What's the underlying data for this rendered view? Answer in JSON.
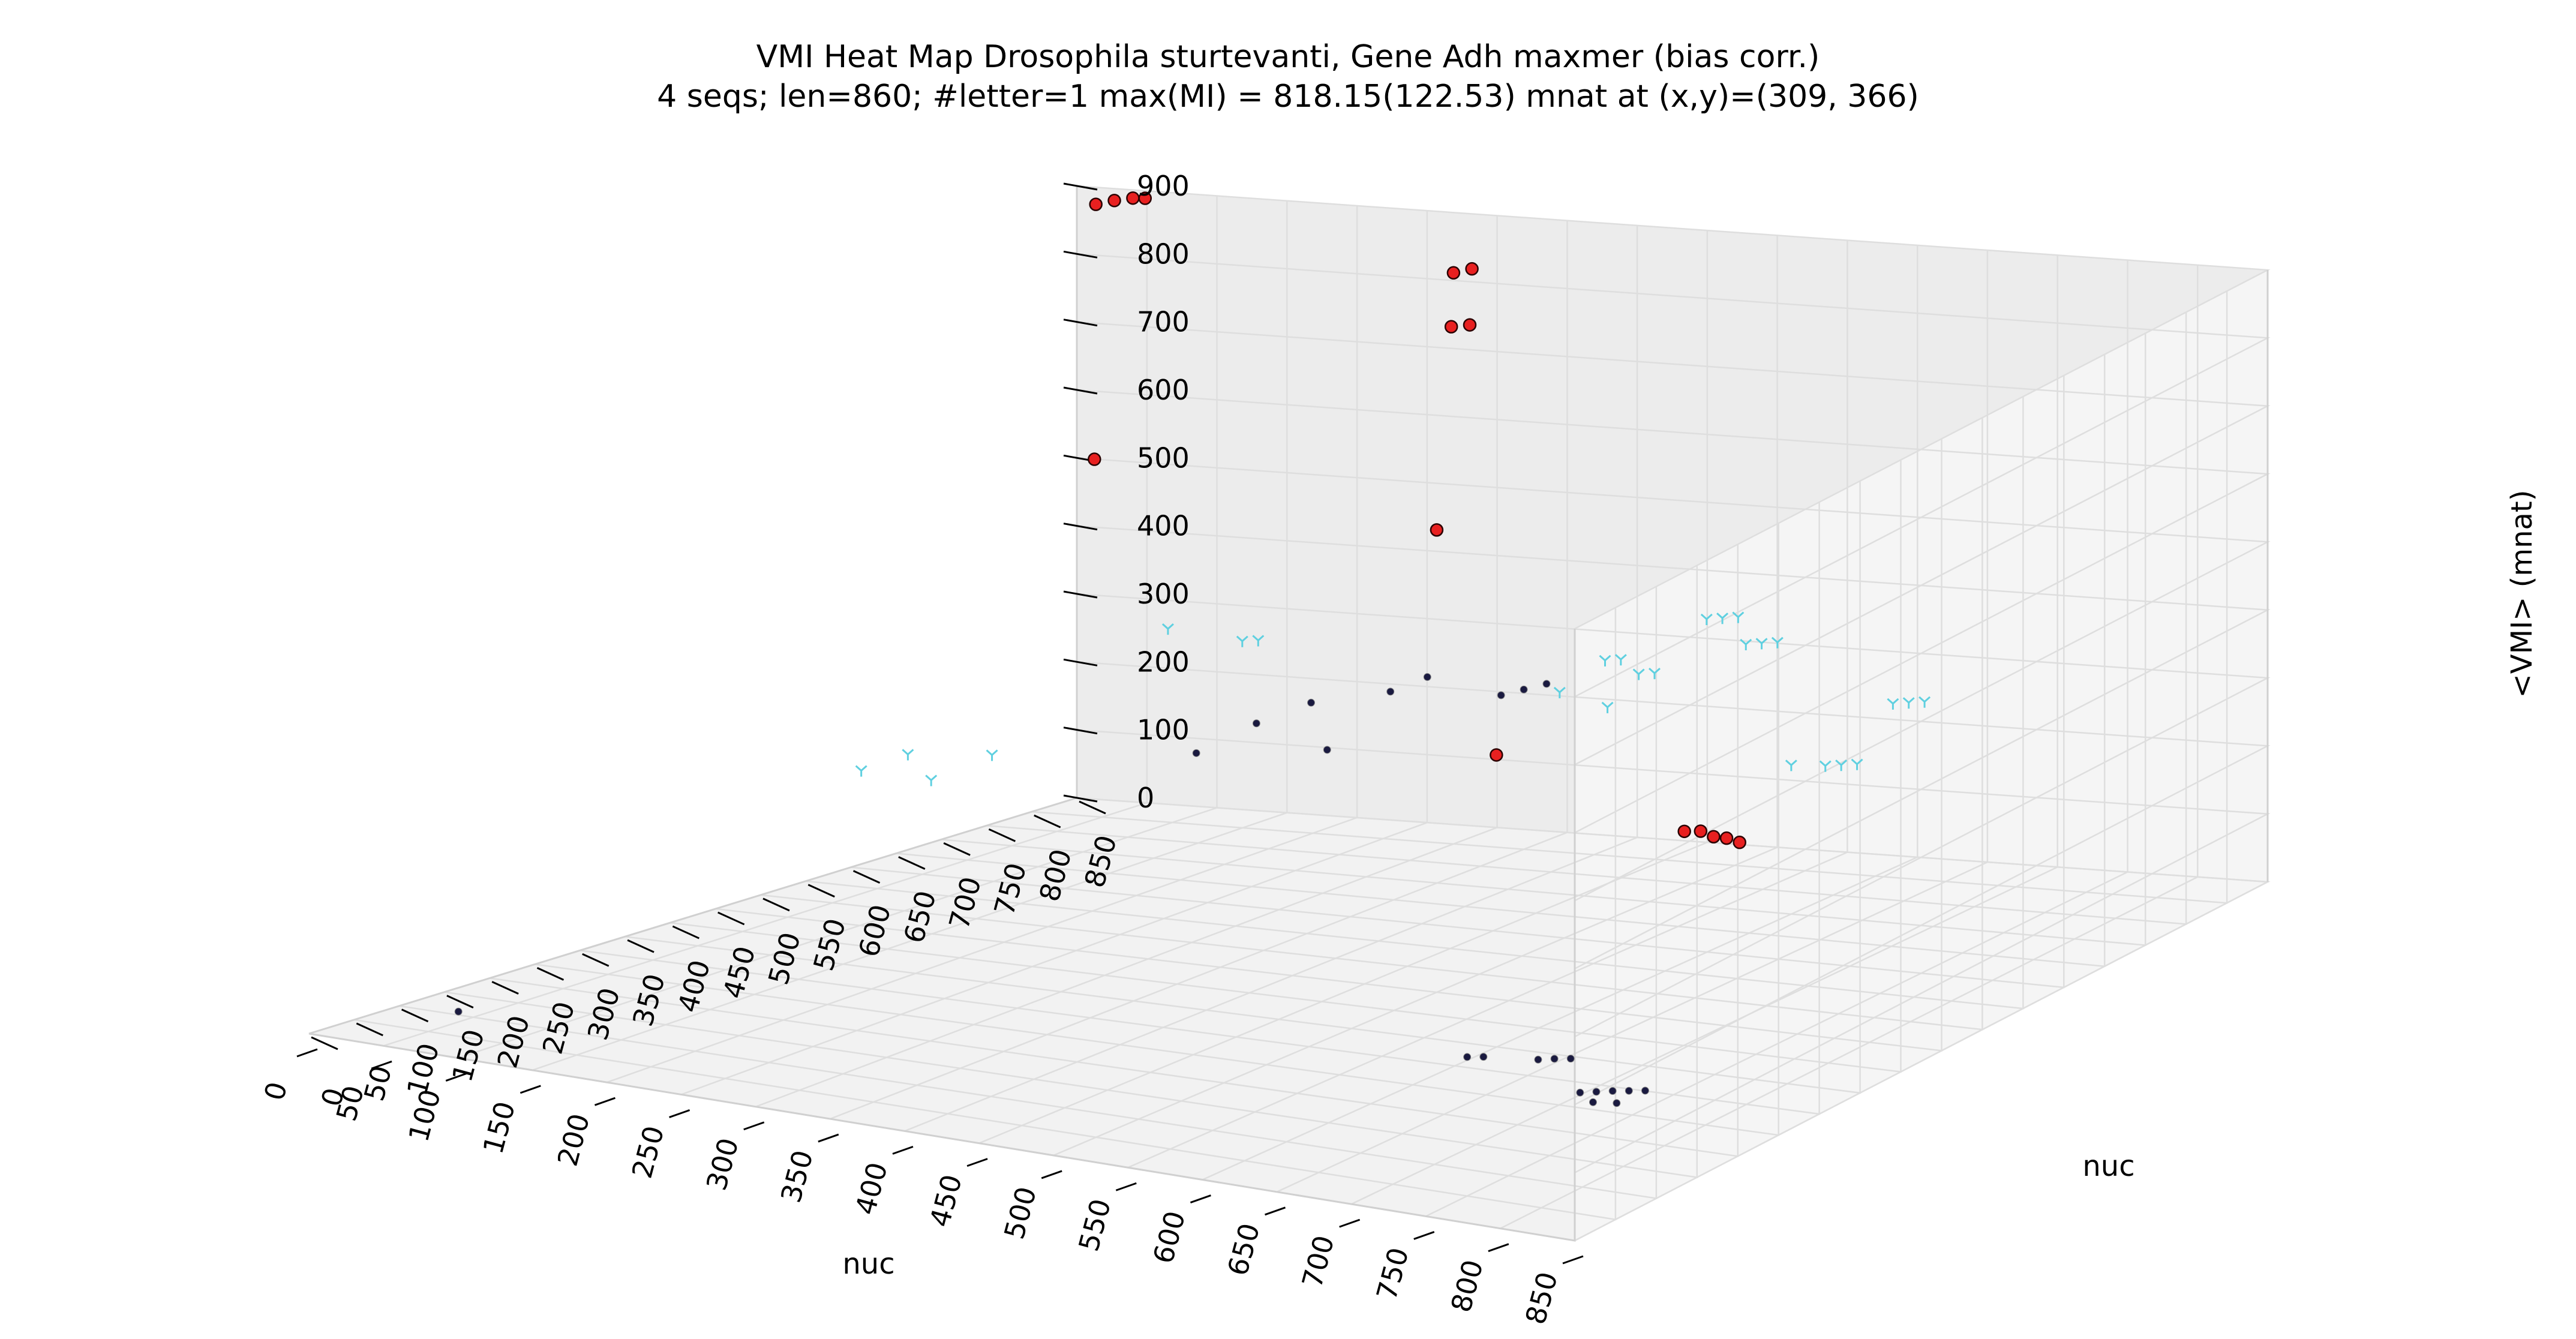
{
  "chart_data": {
    "type": "scatter",
    "title": "VMI Heat Map Drosophila sturtevanti, Gene Adh maxmer (bias corr.)",
    "subtitle": "4 seqs; len=860; #letter=1 max(MI) = 818.15(122.53) mnat at (x,y)=(309, 366)",
    "xlabel": "nuc",
    "ylabel": "nuc",
    "zlabel": "<VMI> (mnat)",
    "xlim": [
      0,
      850
    ],
    "ylim": [
      0,
      850
    ],
    "zlim": [
      0,
      900
    ],
    "x_ticks": [
      "0",
      "50",
      "100",
      "150",
      "200",
      "250",
      "300",
      "350",
      "400",
      "450",
      "500",
      "550",
      "600",
      "650",
      "700",
      "750",
      "800",
      "850"
    ],
    "y_ticks": [
      "0",
      "50",
      "100",
      "150",
      "200",
      "250",
      "300",
      "350",
      "400",
      "450",
      "500",
      "550",
      "600",
      "650",
      "700",
      "750",
      "800",
      "850"
    ],
    "z_ticks": [
      "0",
      "100",
      "200",
      "300",
      "400",
      "500",
      "600",
      "700",
      "800",
      "900"
    ],
    "grid": true,
    "series": [
      {
        "color": "#e82020",
        "marker": "circle",
        "points": [
          [
            20,
            840,
            880
          ],
          [
            30,
            845,
            885
          ],
          [
            40,
            850,
            888
          ],
          [
            50,
            848,
            890
          ],
          [
            300,
            800,
            840
          ],
          [
            310,
            805,
            845
          ],
          [
            360,
            700,
            820
          ],
          [
            370,
            705,
            822
          ],
          [
            500,
            450,
            680
          ],
          [
            640,
            280,
            480
          ],
          [
            305,
            380,
            770
          ],
          [
            780,
            260,
            420
          ],
          [
            790,
            262,
            422
          ],
          [
            800,
            260,
            418
          ],
          [
            810,
            258,
            420
          ],
          [
            820,
            256,
            418
          ]
        ]
      },
      {
        "color": "#1a1a40",
        "marker": "dot",
        "points": [
          [
            180,
            700,
            160
          ],
          [
            210,
            720,
            200
          ],
          [
            230,
            750,
            220
          ],
          [
            260,
            720,
            170
          ],
          [
            280,
            760,
            240
          ],
          [
            300,
            770,
            260
          ],
          [
            340,
            790,
            230
          ],
          [
            350,
            800,
            235
          ],
          [
            360,
            810,
            240
          ],
          [
            620,
            280,
            30
          ],
          [
            630,
            282,
            32
          ],
          [
            680,
            260,
            55
          ],
          [
            690,
            262,
            58
          ],
          [
            700,
            264,
            60
          ],
          [
            720,
            240,
            30
          ],
          [
            730,
            242,
            33
          ],
          [
            740,
            244,
            36
          ],
          [
            750,
            246,
            38
          ],
          [
            760,
            248,
            40
          ],
          [
            40,
            100,
            5
          ],
          [
            730,
            238,
            20
          ],
          [
            745,
            240,
            22
          ]
        ]
      },
      {
        "color": "#5fd0e0",
        "marker": "tri",
        "points": [
          [
            70,
            500,
            200
          ],
          [
            90,
            520,
            220
          ],
          [
            100,
            530,
            180
          ],
          [
            130,
            550,
            215
          ],
          [
            160,
            700,
            340
          ],
          [
            200,
            720,
            320
          ],
          [
            210,
            722,
            322
          ],
          [
            400,
            760,
            260
          ],
          [
            420,
            780,
            300
          ],
          [
            430,
            782,
            302
          ],
          [
            440,
            750,
            250
          ],
          [
            450,
            770,
            290
          ],
          [
            460,
            772,
            292
          ],
          [
            480,
            800,
            360
          ],
          [
            490,
            802,
            362
          ],
          [
            500,
            804,
            364
          ],
          [
            520,
            780,
            340
          ],
          [
            530,
            782,
            342
          ],
          [
            540,
            784,
            344
          ],
          [
            600,
            700,
            220
          ],
          [
            630,
            690,
            230
          ],
          [
            640,
            692,
            232
          ],
          [
            650,
            694,
            234
          ],
          [
            660,
            720,
            310
          ],
          [
            670,
            722,
            312
          ],
          [
            680,
            724,
            314
          ]
        ]
      }
    ]
  }
}
